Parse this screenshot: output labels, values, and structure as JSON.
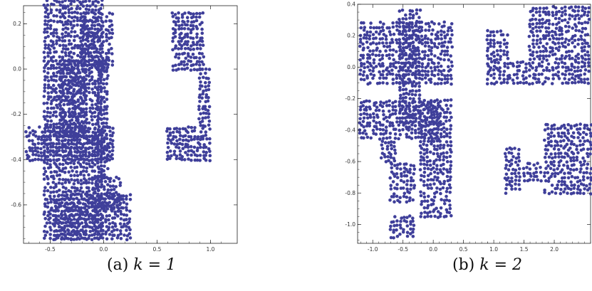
{
  "captions": {
    "a": {
      "label": "(a)",
      "math": "k = 1"
    },
    "b": {
      "label": "(b)",
      "math": "k = 2"
    }
  },
  "chart_data": [
    {
      "type": "scatter",
      "id": "a",
      "title": "",
      "xlabel": "",
      "ylabel": "",
      "xlim": [
        -0.75,
        1.25
      ],
      "ylim": [
        -0.77,
        0.28
      ],
      "xticks": [
        {
          "v": -0.5,
          "t": "-0.5"
        },
        {
          "v": 0.0,
          "t": "0.0"
        },
        {
          "v": 0.5,
          "t": "0.5"
        },
        {
          "v": 1.0,
          "t": "1.0"
        }
      ],
      "yticks": [
        {
          "v": 0.2,
          "t": "0.2"
        },
        {
          "v": 0.0,
          "t": "0.0"
        },
        {
          "v": -0.2,
          "t": "-0.2"
        },
        {
          "v": -0.4,
          "t": "-0.4"
        },
        {
          "v": -0.6,
          "t": "-0.6"
        }
      ],
      "marker_color": "#3f3f9a",
      "regions": [
        [
          -0.55,
          0.0,
          -0.75,
          1.05
        ],
        [
          -0.2,
          0.1,
          0.0,
          0.26
        ],
        [
          0.65,
          0.95,
          0.0,
          0.26
        ],
        [
          -0.4,
          -0.15,
          -0.3,
          0.05
        ],
        [
          -0.05,
          0.05,
          -0.48,
          0.05
        ],
        [
          -0.72,
          0.1,
          -0.4,
          -0.25
        ],
        [
          0.6,
          1.0,
          -0.4,
          -0.25
        ],
        [
          0.9,
          1.0,
          -0.25,
          0.0
        ],
        [
          -0.45,
          0.25,
          -0.75,
          -0.55
        ],
        [
          -0.1,
          0.15,
          -0.62,
          -0.48
        ]
      ]
    },
    {
      "type": "scatter",
      "id": "b",
      "title": "",
      "xlabel": "",
      "ylabel": "",
      "xlim": [
        -1.25,
        2.6
      ],
      "ylim": [
        -1.12,
        0.4
      ],
      "xticks": [
        {
          "v": -1.0,
          "t": "-1.0"
        },
        {
          "v": -0.5,
          "t": "-0.5"
        },
        {
          "v": 0.0,
          "t": "0.0"
        },
        {
          "v": 0.5,
          "t": "0.5"
        },
        {
          "v": 1.0,
          "t": "1.0"
        },
        {
          "v": 1.5,
          "t": "1.5"
        },
        {
          "v": 2.0,
          "t": "2.0"
        }
      ],
      "yticks": [
        {
          "v": 0.4,
          "t": "0.4"
        },
        {
          "v": 0.2,
          "t": "0.2"
        },
        {
          "v": 0.0,
          "t": "0.0"
        },
        {
          "v": -0.2,
          "t": "-0.2"
        },
        {
          "v": -0.4,
          "t": "-0.4"
        },
        {
          "v": -0.6,
          "t": "-0.6"
        },
        {
          "v": -0.8,
          "t": "-0.8"
        },
        {
          "v": -1.0,
          "t": "-1.0"
        }
      ],
      "marker_color": "#3f3f9a",
      "regions": [
        [
          -1.2,
          0.35,
          -0.1,
          0.3
        ],
        [
          -0.55,
          -0.2,
          -0.35,
          0.38
        ],
        [
          -1.2,
          0.1,
          -0.45,
          -0.22
        ],
        [
          -0.85,
          -0.6,
          -0.6,
          -0.45
        ],
        [
          -0.7,
          -0.3,
          -0.85,
          -0.6
        ],
        [
          -0.7,
          -0.3,
          -1.08,
          -0.95
        ],
        [
          -0.2,
          0.3,
          -0.95,
          -0.2
        ],
        [
          0.9,
          2.6,
          -0.1,
          0.05
        ],
        [
          1.6,
          2.6,
          0.05,
          0.38
        ],
        [
          0.9,
          1.25,
          0.05,
          0.25
        ],
        [
          1.2,
          1.45,
          -0.8,
          -0.52
        ],
        [
          1.5,
          1.8,
          -0.72,
          -0.6
        ],
        [
          1.85,
          2.6,
          -0.8,
          -0.35
        ]
      ]
    }
  ]
}
